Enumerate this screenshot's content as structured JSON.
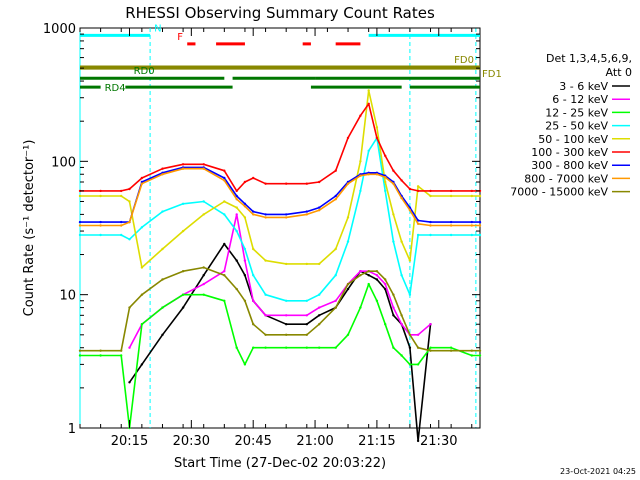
{
  "chart_data": {
    "type": "line",
    "title": "RHESSI Observing Summary Count Rates",
    "xlabel": "Start Time (27-Dec-02 20:03:22)",
    "ylabel": "Count Rate (s⁻¹ detector⁻¹)",
    "xlim": [
      0,
      97
    ],
    "x_unit": "minutes after 20:03:22",
    "ylim": [
      1,
      1000
    ],
    "yscale": "log",
    "grid": false,
    "x_ticks": [
      {
        "x": 12,
        "label": "20:15"
      },
      {
        "x": 27,
        "label": "20:30"
      },
      {
        "x": 42,
        "label": "20:45"
      },
      {
        "x": 57,
        "label": "21:00"
      },
      {
        "x": 72,
        "label": "21:15"
      },
      {
        "x": 87,
        "label": "21:30"
      }
    ],
    "y_ticks": [
      {
        "y": 1,
        "label": "1"
      },
      {
        "y": 10,
        "label": "10"
      },
      {
        "y": 100,
        "label": "100"
      },
      {
        "y": 1000,
        "label": "1000"
      }
    ],
    "legend_header": [
      "Det 1,3,4,5,6,9,",
      "Att 0"
    ],
    "legend_position": "right",
    "x": [
      0,
      5,
      10,
      12,
      15,
      20,
      25,
      30,
      35,
      38,
      40,
      42,
      45,
      50,
      55,
      58,
      62,
      65,
      68,
      70,
      72,
      74,
      76,
      78,
      80,
      82,
      85,
      90,
      95,
      97
    ],
    "series": [
      {
        "name": "3 - 6 keV",
        "color": "#000000",
        "values": [
          null,
          null,
          null,
          2.2,
          3,
          5,
          8,
          14,
          24,
          18,
          14,
          9,
          7,
          6,
          6,
          7,
          8,
          11,
          15,
          14,
          13,
          11,
          7,
          6,
          4,
          0.8,
          6,
          null,
          null,
          null
        ]
      },
      {
        "name": "6 - 12 keV",
        "color": "#ff00ff",
        "values": [
          null,
          null,
          null,
          4,
          6,
          8,
          10,
          12,
          15,
          40,
          18,
          9,
          7,
          7,
          7,
          8,
          9,
          12,
          15,
          15,
          14,
          12,
          8,
          6,
          5,
          5,
          6,
          null,
          null,
          null
        ]
      },
      {
        "name": "12 - 25 keV",
        "color": "#00ff00",
        "values": [
          3.5,
          3.5,
          3.5,
          1,
          6,
          8,
          10,
          10,
          9,
          4,
          3,
          4,
          4,
          4,
          4,
          4,
          4,
          5,
          8,
          12,
          9,
          6,
          4,
          3.5,
          3,
          3,
          4,
          4,
          3.5,
          3.5
        ]
      },
      {
        "name": "25 - 50 keV",
        "color": "#00ffff",
        "values": [
          28,
          28,
          28,
          26,
          32,
          42,
          48,
          50,
          40,
          30,
          22,
          14,
          10,
          9,
          9,
          10,
          14,
          25,
          60,
          120,
          150,
          60,
          25,
          14,
          10,
          28,
          28,
          28,
          28,
          28
        ]
      },
      {
        "name": "50 - 100 keV",
        "color": "#dddd00",
        "values": [
          55,
          55,
          55,
          50,
          16,
          22,
          30,
          40,
          50,
          45,
          38,
          22,
          18,
          17,
          17,
          17,
          22,
          38,
          100,
          340,
          180,
          70,
          40,
          25,
          18,
          65,
          55,
          55,
          55,
          55
        ]
      },
      {
        "name": "100 - 300 keV",
        "color": "#ff0000",
        "values": [
          60,
          60,
          60,
          62,
          75,
          88,
          95,
          95,
          85,
          60,
          70,
          75,
          68,
          68,
          68,
          70,
          85,
          150,
          220,
          270,
          150,
          110,
          85,
          72,
          62,
          60,
          60,
          60,
          60,
          60
        ]
      },
      {
        "name": "300 - 800 keV",
        "color": "#0000ff",
        "values": [
          35,
          35,
          35,
          35,
          70,
          82,
          90,
          90,
          75,
          55,
          48,
          42,
          40,
          40,
          42,
          45,
          55,
          70,
          80,
          82,
          82,
          78,
          70,
          55,
          45,
          36,
          35,
          35,
          35,
          35
        ]
      },
      {
        "name": "800 - 7000 keV",
        "color": "#ff9900",
        "values": [
          33,
          33,
          33,
          35,
          68,
          80,
          88,
          88,
          72,
          52,
          46,
          40,
          38,
          38,
          40,
          43,
          52,
          68,
          78,
          80,
          80,
          76,
          68,
          53,
          43,
          34,
          33,
          33,
          33,
          33
        ]
      },
      {
        "name": "7000 - 15000 keV",
        "color": "#888800",
        "values": [
          3.8,
          3.8,
          3.8,
          8,
          10,
          13,
          15,
          16,
          14,
          11,
          9,
          6,
          5,
          5,
          5,
          6,
          8,
          12,
          14,
          15,
          15,
          13,
          10,
          7,
          5,
          4,
          3.8,
          3.8,
          3.8,
          3.8
        ]
      }
    ],
    "annotations": [
      {
        "label": "N",
        "color": "#00ffff",
        "y": 880,
        "segments": [
          [
            0,
            17
          ],
          [
            70,
            97
          ]
        ]
      },
      {
        "label": "F",
        "color": "#ff0000",
        "y": 760,
        "segments": [
          [
            26,
            28
          ],
          [
            33,
            40
          ],
          [
            54,
            56
          ],
          [
            62,
            68
          ]
        ]
      },
      {
        "label": "FD0",
        "color": "#888800",
        "y": 510,
        "segments": [
          [
            0,
            97
          ]
        ]
      },
      {
        "label": "FD1",
        "color": "#888800",
        "y": 500,
        "segments": [
          [
            0,
            97
          ]
        ]
      },
      {
        "label": "RD0",
        "color": "#007700",
        "y": 420,
        "segments": [
          [
            0,
            35
          ],
          [
            37,
            57
          ],
          [
            57,
            97
          ]
        ]
      },
      {
        "label": "RD4",
        "color": "#007700",
        "y": 360,
        "segments": [
          [
            0,
            5
          ],
          [
            11,
            37
          ],
          [
            56,
            78
          ],
          [
            80,
            97
          ]
        ]
      }
    ],
    "vertical_lines": [
      {
        "x": 0,
        "style": "solid",
        "color": "#00ffff"
      },
      {
        "x": 17,
        "style": "dashed",
        "color": "#00ffff"
      },
      {
        "x": 80,
        "style": "dashed",
        "color": "#00ffff"
      },
      {
        "x": 96,
        "style": "dashed",
        "color": "#00ffff"
      }
    ]
  },
  "footer": {
    "timestamp": "23-Oct-2021 04:25"
  }
}
